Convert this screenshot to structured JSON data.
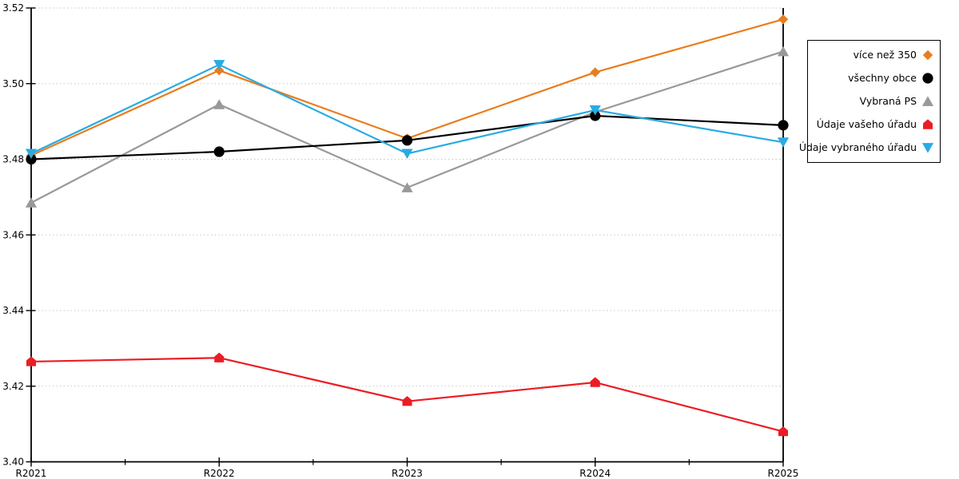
{
  "chart_data": {
    "type": "line",
    "categories": [
      "R2021",
      "R2022",
      "R2023",
      "R2024",
      "R2025"
    ],
    "series": [
      {
        "name": "více než 350",
        "color": "#E87D1E",
        "marker": "diamond",
        "values": [
          3.481,
          3.5035,
          3.4855,
          3.503,
          3.517
        ]
      },
      {
        "name": "Vybraná PS",
        "color": "#999999",
        "marker": "triangle-up",
        "values": [
          3.4685,
          3.4945,
          3.4725,
          3.4925,
          3.5085
        ]
      },
      {
        "name": "všechny obce",
        "color": "#000000",
        "marker": "circle",
        "values": [
          3.48,
          3.482,
          3.485,
          3.4915,
          3.489
        ]
      },
      {
        "name": "Údaje vašeho úřadu",
        "color": "#EC1C24",
        "marker": "pentagon",
        "values": [
          3.4265,
          3.4275,
          3.416,
          3.421,
          3.408
        ]
      },
      {
        "name": "Údaje vybraného úřadu",
        "color": "#29ABE2",
        "marker": "triangle-down",
        "values": [
          3.4815,
          3.505,
          3.4815,
          3.493,
          3.4845
        ]
      }
    ],
    "legend_order": [
      "více než 350",
      "všechny obce",
      "Vybraná PS",
      "Údaje vašeho úřadu",
      "Údaje vybraného úřadu"
    ],
    "title": "",
    "xlabel": "",
    "ylabel": "",
    "ylim": [
      3.4,
      3.52
    ],
    "ytick_step": 0.02,
    "y_tick_labels": [
      "3.40",
      "3.42",
      "3.44",
      "3.46",
      "3.48",
      "3.50",
      "3.52"
    ],
    "grid": "horizontal-dotted",
    "legend_position": "right",
    "colors": {
      "axis": "#000000",
      "gridline": "#c8c8c8",
      "background": "#ffffff"
    }
  }
}
